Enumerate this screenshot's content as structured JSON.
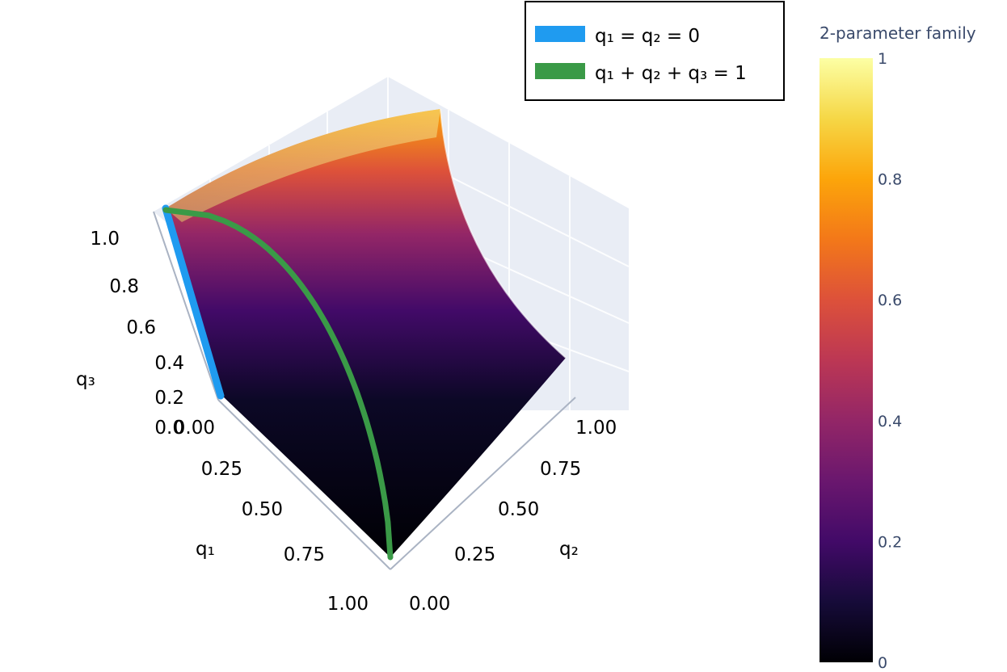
{
  "chart_data": {
    "type": "surface",
    "title": "",
    "axes": {
      "x": {
        "label": "q₁",
        "range": [
          0,
          1
        ],
        "ticks": [
          "0.00",
          "0.25",
          "0.50",
          "0.75",
          "1.00"
        ]
      },
      "y": {
        "label": "q₂",
        "range": [
          0,
          1
        ],
        "ticks": [
          "0.00",
          "0.25",
          "0.50",
          "0.75",
          "1.00"
        ]
      },
      "z": {
        "label": "q₃",
        "range": [
          0,
          1
        ],
        "ticks": [
          "0.0",
          "0.2",
          "0.4",
          "0.6",
          "0.8",
          "1.0"
        ]
      }
    },
    "grid": true,
    "surface": {
      "colorscale": "inferno",
      "colorbar": {
        "title": "2-parameter family",
        "range": [
          0,
          1
        ],
        "ticks": [
          "0",
          "0.2",
          "0.4",
          "0.6",
          "0.8",
          "1"
        ]
      }
    },
    "legend_position": "top-right",
    "series": [
      {
        "name": "q₁ = q₂ = 0",
        "color": "#1f9bf0",
        "points": [
          [
            0,
            0,
            0
          ],
          [
            0,
            0,
            0.25
          ],
          [
            0,
            0,
            0.5
          ],
          [
            0,
            0,
            0.75
          ],
          [
            0,
            0,
            1
          ]
        ]
      },
      {
        "name": "q₁ + q₂ + q₃ = 1",
        "color": "#3a9a47",
        "points": [
          [
            1,
            0,
            0
          ],
          [
            0.8,
            0,
            0.2
          ],
          [
            0.6,
            0,
            0.4
          ],
          [
            0.4,
            0,
            0.6
          ],
          [
            0.2,
            0,
            0.8
          ],
          [
            0,
            0,
            1
          ]
        ]
      }
    ]
  }
}
